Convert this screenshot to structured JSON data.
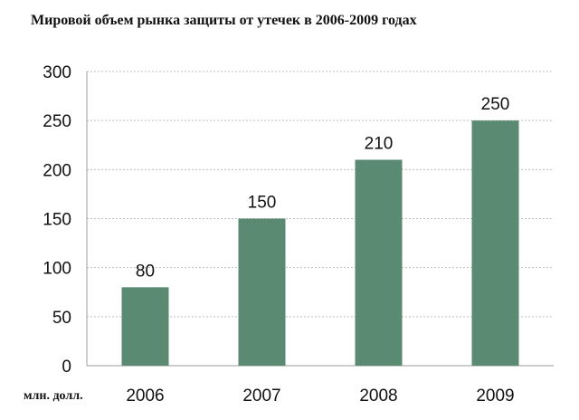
{
  "chart_data": {
    "type": "bar",
    "title": "Мировой объем рынка защиты от утечек в 2006-2009 годах",
    "unit_label": "млн. долл.",
    "categories": [
      "2006",
      "2007",
      "2008",
      "2009"
    ],
    "values": [
      80,
      150,
      210,
      250
    ],
    "data_labels": [
      "80",
      "150",
      "210",
      "250"
    ],
    "ylim": [
      0,
      300
    ],
    "yticks": [
      0,
      50,
      100,
      150,
      200,
      250,
      300
    ],
    "grid": true,
    "legend": "none",
    "bar_color": "#5a8a72"
  }
}
